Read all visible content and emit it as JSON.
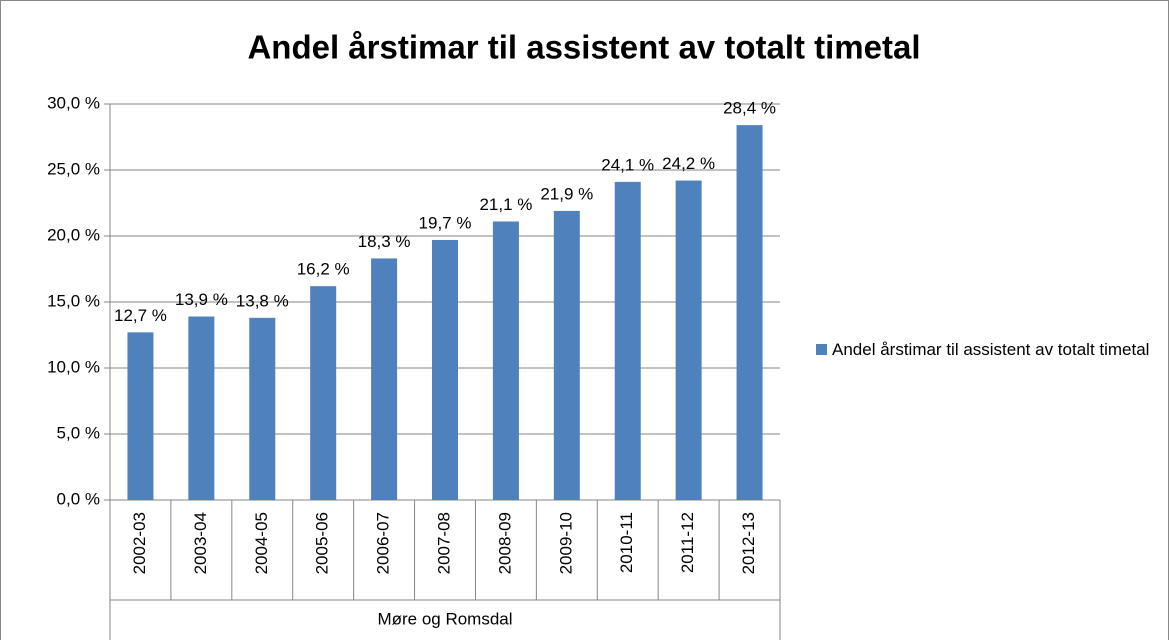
{
  "chart_data": {
    "type": "bar",
    "title": "Andel årstimar til assistent av totalt timetal",
    "categories": [
      "2002-03",
      "2003-04",
      "2004-05",
      "2005-06",
      "2006-07",
      "2007-08",
      "2008-09",
      "2009-10",
      "2010-11",
      "2011-12",
      "2012-13"
    ],
    "group_label": "Møre og Romsdal",
    "series": [
      {
        "name": "Andel årstimar til assistent av totalt timetal",
        "color": "#4f81bd",
        "values": [
          12.7,
          13.9,
          13.8,
          16.2,
          18.3,
          19.7,
          21.1,
          21.9,
          24.1,
          24.2,
          28.4
        ],
        "value_labels": [
          "12,7 %",
          "13,9 %",
          "13,8 %",
          "16,2 %",
          "18,3 %",
          "19,7 %",
          "21,1 %",
          "21,9 %",
          "24,1 %",
          "24,2 %",
          "28,4 %"
        ]
      }
    ],
    "ylim": [
      0,
      30
    ],
    "yticks": [
      {
        "value": 0,
        "label": "0,0 %"
      },
      {
        "value": 5,
        "label": "5,0 %"
      },
      {
        "value": 10,
        "label": "10,0 %"
      },
      {
        "value": 15,
        "label": "15,0 %"
      },
      {
        "value": 20,
        "label": "20,0 %"
      },
      {
        "value": 25,
        "label": "25,0 %"
      },
      {
        "value": 30,
        "label": "30,0 %"
      }
    ],
    "grid": true,
    "legend": "right"
  }
}
